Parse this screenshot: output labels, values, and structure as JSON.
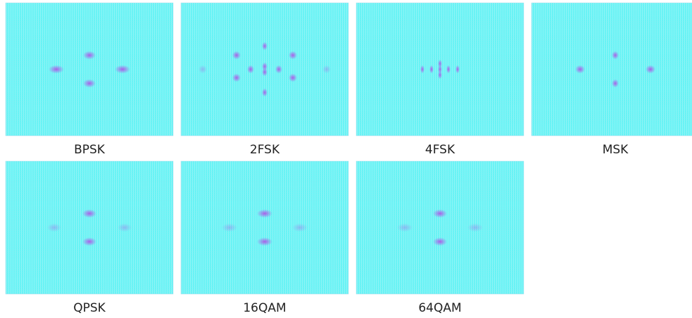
{
  "panels": [
    {
      "label": "BPSK"
    },
    {
      "label": "2FSK"
    },
    {
      "label": "4FSK"
    },
    {
      "label": "MSK"
    },
    {
      "label": "QPSK"
    },
    {
      "label": "16QAM"
    },
    {
      "label": "64QAM"
    }
  ]
}
